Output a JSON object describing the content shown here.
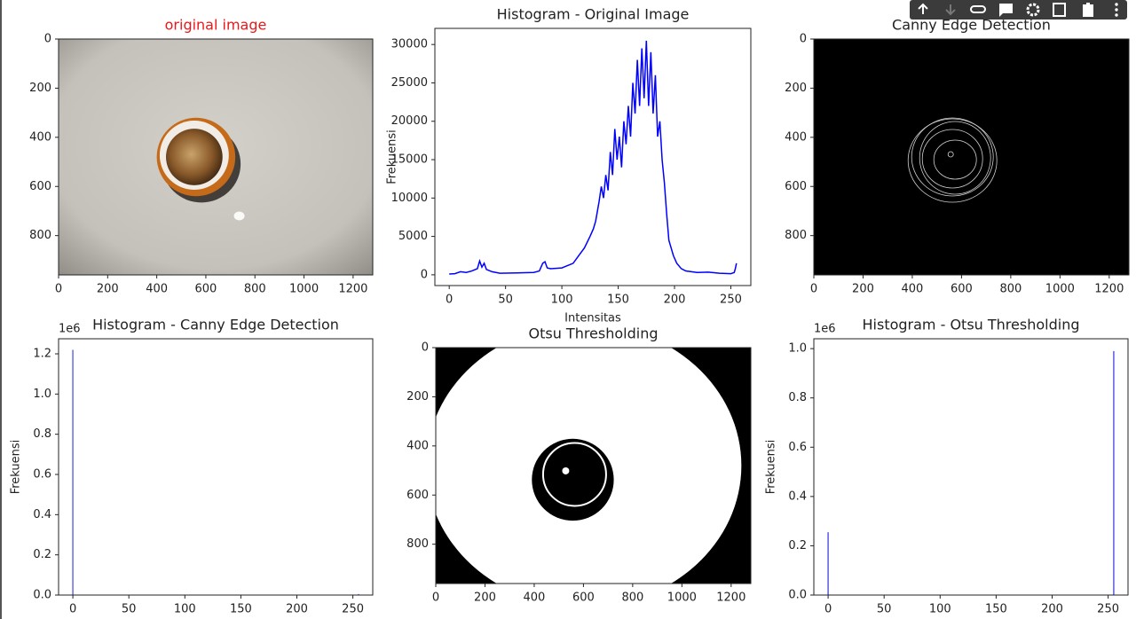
{
  "chart_data": [
    {
      "type": "image",
      "title": "original image",
      "title_color": "#e8191a",
      "xlim": [
        0,
        1280
      ],
      "ylim": [
        960,
        0
      ],
      "xticks": [
        0,
        200,
        400,
        600,
        800,
        1000,
        1200
      ],
      "yticks": [
        0,
        200,
        400,
        600,
        800
      ]
    },
    {
      "type": "line",
      "title": "Histogram - Original Image",
      "xlabel": "Intensitas",
      "ylabel": "Frekuensi",
      "color": "#0000ff",
      "xlim": [
        -12.75,
        267.75
      ],
      "ylim": [
        -1400,
        32100
      ],
      "xticks": [
        0,
        50,
        100,
        150,
        200,
        250
      ],
      "yticks": [
        0,
        5000,
        10000,
        15000,
        20000,
        25000,
        30000
      ],
      "x": [
        0,
        5,
        10,
        15,
        20,
        25,
        27,
        29,
        31,
        33,
        38,
        45,
        60,
        75,
        80,
        83,
        85,
        87,
        90,
        100,
        110,
        115,
        120,
        125,
        128,
        130,
        133,
        135,
        137,
        139,
        141,
        143,
        145,
        147,
        149,
        151,
        153,
        155,
        157,
        159,
        161,
        163,
        165,
        167,
        169,
        171,
        173,
        175,
        177,
        179,
        181,
        183,
        185,
        187,
        189,
        191,
        193,
        195,
        197,
        199,
        202,
        206,
        210,
        220,
        230,
        240,
        250,
        253,
        254,
        255
      ],
      "values": [
        100,
        150,
        400,
        300,
        500,
        800,
        1800,
        1000,
        1500,
        700,
        400,
        200,
        250,
        300,
        500,
        1500,
        1700,
        900,
        800,
        900,
        1500,
        2500,
        3500,
        5000,
        6000,
        7000,
        9500,
        11500,
        10000,
        13000,
        11000,
        16000,
        13000,
        19000,
        15000,
        18000,
        14000,
        20000,
        17000,
        22000,
        18000,
        25000,
        21000,
        28000,
        22000,
        29500,
        23000,
        30500,
        22000,
        29000,
        21000,
        26000,
        18000,
        20000,
        15000,
        12000,
        8000,
        4500,
        3500,
        2500,
        1500,
        800,
        500,
        300,
        350,
        200,
        150,
        300,
        800,
        1500
      ]
    },
    {
      "type": "image",
      "title": "Canny Edge Detection",
      "xlim": [
        0,
        1280
      ],
      "ylim": [
        960,
        0
      ],
      "xticks": [
        0,
        200,
        400,
        600,
        800,
        1000,
        1200
      ],
      "yticks": [
        0,
        200,
        400,
        600,
        800
      ]
    },
    {
      "type": "bar",
      "title": "Histogram - Canny Edge Detection",
      "ylabel": "Frekuensi",
      "offset_label": "1e6",
      "color": "#6a6ae6",
      "xlim": [
        -12.75,
        267.75
      ],
      "ylim": [
        0,
        1.275
      ],
      "xticks": [
        0,
        50,
        100,
        150,
        200,
        250
      ],
      "yticks": [
        {
          "value": 0,
          "label": "0.0"
        },
        {
          "value": 0.2,
          "label": "0.2"
        },
        {
          "value": 0.4,
          "label": "0.4"
        },
        {
          "value": 0.6,
          "label": "0.6"
        },
        {
          "value": 0.8,
          "label": "0.8"
        },
        {
          "value": 1.0,
          "label": "1.0"
        },
        {
          "value": 1.2,
          "label": "1.2"
        }
      ],
      "x": [
        0,
        255
      ],
      "values": [
        1.22,
        0.005
      ]
    },
    {
      "type": "image",
      "title": "Otsu Thresholding",
      "xlim": [
        0,
        1280
      ],
      "ylim": [
        960,
        0
      ],
      "xticks": [
        0,
        200,
        400,
        600,
        800,
        1000,
        1200
      ],
      "yticks": [
        0,
        200,
        400,
        600,
        800
      ]
    },
    {
      "type": "bar",
      "title": "Histogram - Otsu Thresholding",
      "ylabel": "Frekuensi",
      "offset_label": "1e6",
      "color": "#5a5ae6",
      "xlim": [
        -12.75,
        267.75
      ],
      "ylim": [
        0,
        1.04
      ],
      "xticks": [
        0,
        50,
        100,
        150,
        200,
        250
      ],
      "yticks": [
        {
          "value": 0,
          "label": "0.0"
        },
        {
          "value": 0.2,
          "label": "0.2"
        },
        {
          "value": 0.4,
          "label": "0.4"
        },
        {
          "value": 0.6,
          "label": "0.6"
        },
        {
          "value": 0.8,
          "label": "0.8"
        },
        {
          "value": 1.0,
          "label": "1.0"
        }
      ],
      "x": [
        0,
        255
      ],
      "values": [
        0.255,
        0.99
      ]
    }
  ]
}
